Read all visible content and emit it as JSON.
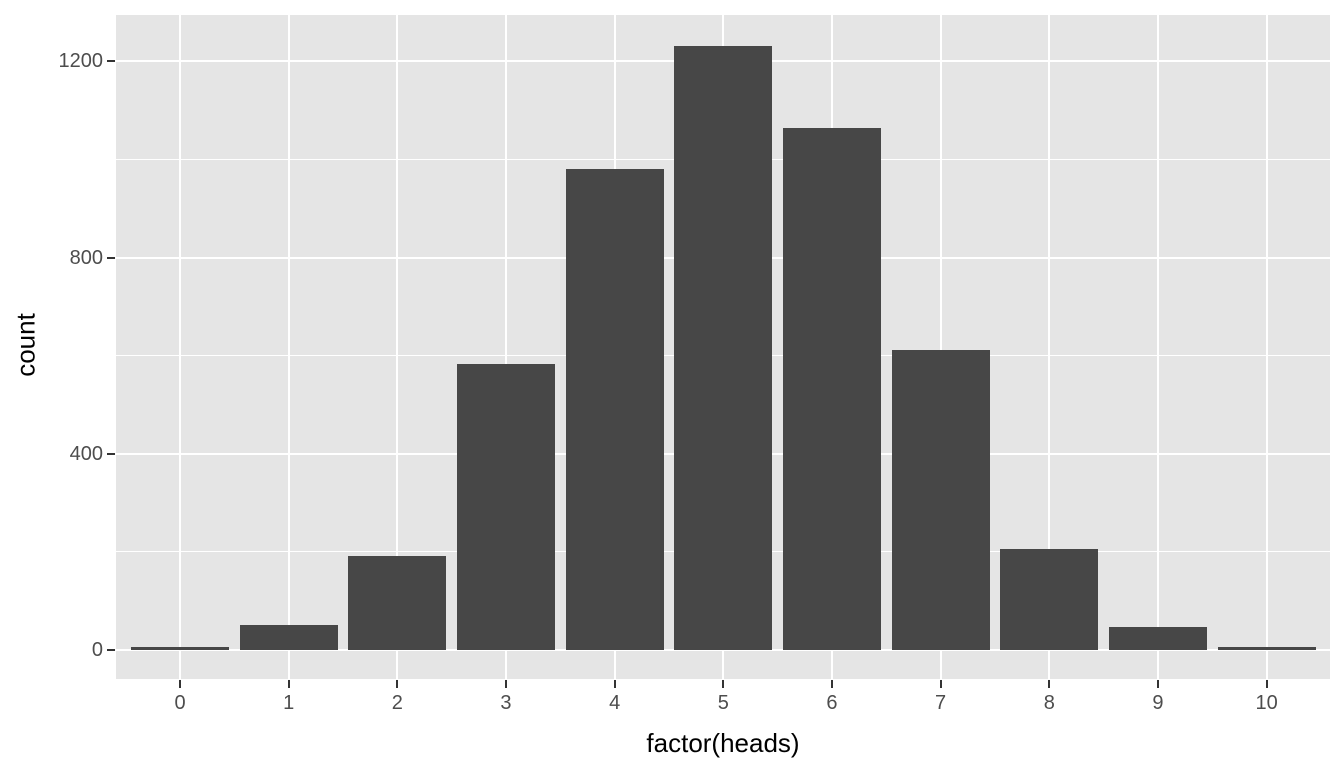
{
  "chart_data": {
    "type": "bar",
    "title": "",
    "xlabel": "factor(heads)",
    "ylabel": "count",
    "categories": [
      "0",
      "1",
      "2",
      "3",
      "4",
      "5",
      "6",
      "7",
      "8",
      "9",
      "10"
    ],
    "values": [
      6,
      51,
      192,
      583,
      980,
      1232,
      1064,
      612,
      206,
      47,
      6
    ],
    "ylim": [
      0,
      1295
    ],
    "yticks": [
      0,
      400,
      800,
      1200
    ],
    "ytick_labels": [
      "0",
      "400",
      "800",
      "1200"
    ],
    "yminor": [
      200,
      600,
      1000
    ],
    "grid": "major-and-minor-horizontal, major-vertical-at-categories",
    "legend_position": "none",
    "colors": {
      "panel_background": "#E5E5E5",
      "gridline": "#FFFFFF",
      "bar_fill": "#474747",
      "tick_label": "#4D4D4D",
      "tick_mark": "#333333",
      "axis_title": "#000000",
      "page_background": "#FFFFFF"
    }
  }
}
